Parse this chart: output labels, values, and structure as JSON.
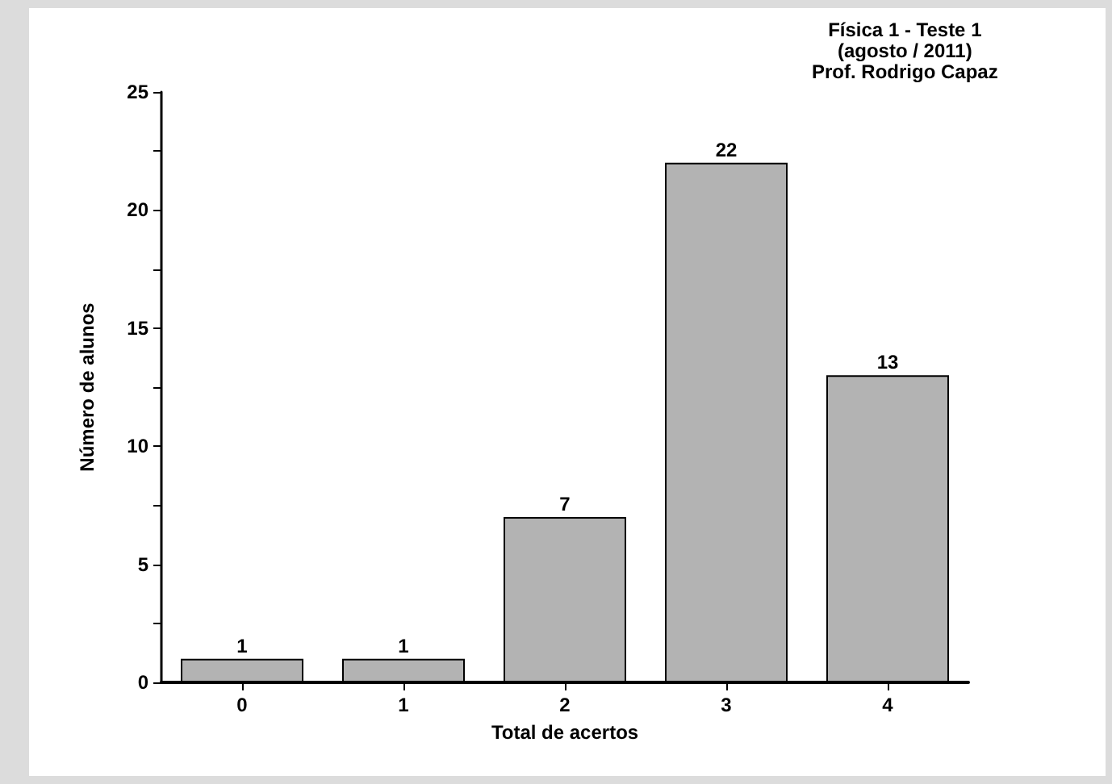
{
  "chart_data": {
    "type": "bar",
    "title": "Física 1 - Teste 1\n(agosto / 2011)\nProf. Rodrigo Capaz",
    "xlabel": "Total de acertos",
    "ylabel": "Número de alunos",
    "categories": [
      "0",
      "1",
      "2",
      "3",
      "4"
    ],
    "values": [
      1,
      1,
      7,
      22,
      13
    ],
    "color": "#b3b3b3",
    "ylim": [
      0,
      25
    ],
    "yticks": [
      0,
      {
        "value": 2.5,
        "label": null
      },
      5,
      {
        "value": 7.5,
        "label": null
      },
      10,
      {
        "value": 12.5,
        "label": null
      },
      15,
      {
        "value": 17.5,
        "label": null
      },
      20,
      {
        "value": 22.5,
        "label": null
      },
      25
    ],
    "grid": false,
    "data_labels": true
  }
}
